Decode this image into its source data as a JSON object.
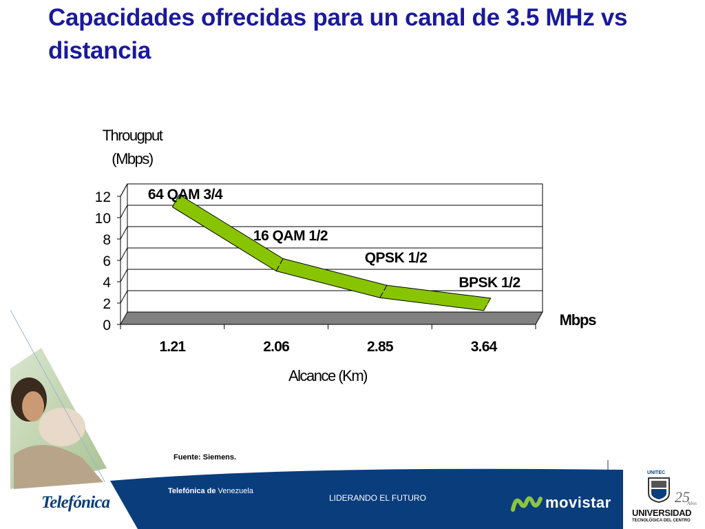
{
  "slide": {
    "title": "Capacidades ofrecidas para un canal de 3.5 MHz vs distancia",
    "source": "Fuente: Siemens."
  },
  "chart_data": {
    "type": "line",
    "style": "3d-ribbon",
    "ylabel_lines": [
      "Througput",
      "(Mbps)"
    ],
    "xlabel": "Alcance (Km)",
    "unit_label": "Mbps",
    "categories": [
      "1.21",
      "2.06",
      "2.85",
      "3.64"
    ],
    "values": [
      11,
      5,
      2.5,
      1.3
    ],
    "point_labels": [
      "64 QAM 3/4",
      "16 QAM 1/2",
      "QPSK 1/2",
      "BPSK 1/2"
    ],
    "yticks": [
      "0",
      "2",
      "4",
      "6",
      "8",
      "10",
      "12"
    ],
    "ylim": [
      0,
      12
    ],
    "grid": true,
    "legend": "none",
    "series_color": "#88c400",
    "floor_color": "#808080"
  },
  "footer": {
    "company_bold": "Telefónica de",
    "company_regular": " Venezuela",
    "slogan": "LIDERANDO EL FUTURO",
    "logo_telefonica": "Telefónica",
    "logo_movistar": "movistar",
    "logo_unitec_badge": "UNITEC",
    "logo_university": "UNIVERSIDAD",
    "logo_university_sub": "TECNOLÓGICA DEL CENTRO",
    "logo_years": "25",
    "logo_years_word": "Años",
    "colors": {
      "band": "#0a3d7c",
      "accent": "#1a1a9c",
      "movistar_green": "#8cc63f"
    }
  }
}
